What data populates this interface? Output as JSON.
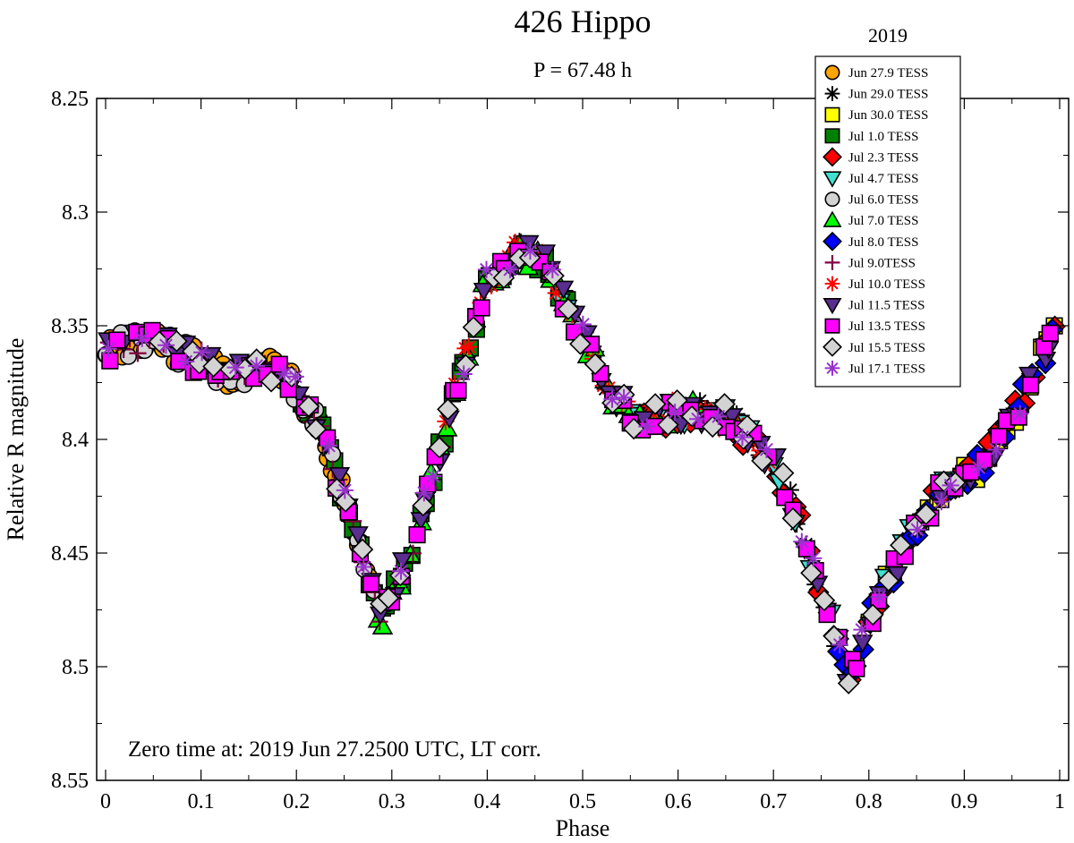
{
  "chart_data": {
    "type": "scatter",
    "title": "426 Hippo",
    "subtitle": "P = 67.48 h",
    "legend_title": "2019",
    "legend_position": "top-right",
    "xlabel": "Phase",
    "ylabel": "Relative R magnitude",
    "xlim": [
      0,
      1
    ],
    "ylim": [
      8.25,
      8.55
    ],
    "y_inverted": true,
    "x_ticks": [
      {
        "v": 0,
        "label": "0"
      },
      {
        "v": 0.1,
        "label": "0.1"
      },
      {
        "v": 0.2,
        "label": "0.2"
      },
      {
        "v": 0.3,
        "label": "0.3"
      },
      {
        "v": 0.4,
        "label": "0.4"
      },
      {
        "v": 0.5,
        "label": "0.5"
      },
      {
        "v": 0.6,
        "label": "0.6"
      },
      {
        "v": 0.7,
        "label": "0.7"
      },
      {
        "v": 0.8,
        "label": "0.8"
      },
      {
        "v": 0.9,
        "label": "0.9"
      },
      {
        "v": 1,
        "label": "1"
      }
    ],
    "y_ticks": [
      {
        "v": 8.25,
        "label": "8.25"
      },
      {
        "v": 8.3,
        "label": "8.3"
      },
      {
        "v": 8.35,
        "label": "8.35"
      },
      {
        "v": 8.4,
        "label": "8.4"
      },
      {
        "v": 8.45,
        "label": "8.45"
      },
      {
        "v": 8.5,
        "label": "8.5"
      },
      {
        "v": 8.55,
        "label": "8.55"
      }
    ],
    "annotation": "Zero time at: 2019 Jun 27.2500 UTC, LT corr.",
    "lightcurve_phase": [
      0.0,
      0.05,
      0.1,
      0.13,
      0.16,
      0.18,
      0.2,
      0.23,
      0.26,
      0.29,
      0.32,
      0.36,
      0.4,
      0.43,
      0.46,
      0.5,
      0.53,
      0.56,
      0.6,
      0.65,
      0.7,
      0.73,
      0.76,
      0.78,
      0.8,
      0.84,
      0.88,
      0.92,
      0.95,
      1.0
    ],
    "lightcurve_magnitude": [
      8.36,
      8.357,
      8.366,
      8.372,
      8.37,
      8.368,
      8.378,
      8.4,
      8.44,
      8.48,
      8.45,
      8.39,
      8.33,
      8.318,
      8.32,
      8.355,
      8.38,
      8.392,
      8.388,
      8.39,
      8.41,
      8.44,
      8.48,
      8.505,
      8.48,
      8.445,
      8.42,
      8.41,
      8.39,
      8.35
    ],
    "series": [
      {
        "name": "Jun 27.9 TESS",
        "marker": "circle",
        "color": "#ffa500",
        "phase_start": 0.0,
        "phase_end": 0.28,
        "points": 64
      },
      {
        "name": "Jun 29.0 TESS",
        "marker": "star",
        "color": "#000000",
        "phase_start": 0.43,
        "phase_end": 0.77,
        "points": 34
      },
      {
        "name": "Jun 30.0 TESS",
        "marker": "square",
        "color": "#ffff00",
        "phase_start": 0.8,
        "phase_end": 1.0,
        "points": 24
      },
      {
        "name": "Jul 1.0 TESS",
        "marker": "square",
        "color": "#008000",
        "phase_start": 0.19,
        "phase_end": 0.49,
        "points": 44
      },
      {
        "name": "Jul 2.3 TESS",
        "marker": "diamond",
        "color": "#ff0000",
        "phase_start": 0.55,
        "phase_end": 1.0,
        "points": 46
      },
      {
        "name": "Jul 4.7 TESS",
        "marker": "triangle-down",
        "color": "#40e0d0",
        "phase_start": 0.45,
        "phase_end": 0.9,
        "points": 30
      },
      {
        "name": "Jul 6.0 TESS",
        "marker": "circle",
        "color": "#d3d3d3",
        "phase_start": 0.0,
        "phase_end": 0.3,
        "points": 30
      },
      {
        "name": "Jul 7.0 TESS",
        "marker": "triangle-up",
        "color": "#00ff00",
        "phase_start": 0.28,
        "phase_end": 0.66,
        "points": 40
      },
      {
        "name": "Jul 8.0 TESS",
        "marker": "diamond",
        "color": "#0000ff",
        "phase_start": 0.76,
        "phase_end": 1.0,
        "points": 24
      },
      {
        "name": "Jul 9.0TESS",
        "marker": "plus",
        "color": "#800040",
        "phase_start": 0.0,
        "phase_end": 0.36,
        "points": 34
      },
      {
        "name": "Jul 10.0 TESS",
        "marker": "star",
        "color": "#ff0000",
        "phase_start": 0.35,
        "phase_end": 0.7,
        "points": 36
      },
      {
        "name": "Jul 11.5 TESS",
        "marker": "triangle-down",
        "color": "#5a2d90",
        "phase_start": 0.0,
        "phase_end": 1.0,
        "points": 84
      },
      {
        "name": "Jul 13.5 TESS",
        "marker": "square",
        "color": "#ff00ff",
        "phase_start": 0.0,
        "phase_end": 1.0,
        "points": 84
      },
      {
        "name": "Jul 15.5 TESS",
        "marker": "diamond",
        "color": "#d3d3d3",
        "phase_start": 0.05,
        "phase_end": 0.9,
        "points": 56
      },
      {
        "name": "Jul 17.1 TESS",
        "marker": "star",
        "color": "#9932cc",
        "phase_start": 0.0,
        "phase_end": 0.98,
        "points": 40
      }
    ]
  }
}
